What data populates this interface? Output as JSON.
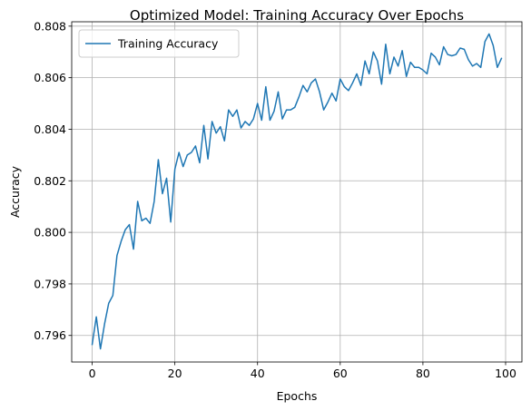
{
  "chart_data": {
    "type": "line",
    "title": "Optimized Model: Training Accuracy Over Epochs",
    "xlabel": "Epochs",
    "ylabel": "Accuracy",
    "xlim": [
      -4.95,
      103.95
    ],
    "ylim": [
      0.79497,
      0.80817
    ],
    "x_ticks": [
      0,
      20,
      40,
      60,
      80,
      100
    ],
    "y_ticks": [
      0.796,
      0.798,
      0.8,
      0.802,
      0.804,
      0.806,
      0.808
    ],
    "x_tick_labels": [
      "0",
      "20",
      "40",
      "60",
      "80",
      "100"
    ],
    "y_tick_labels": [
      "0.796",
      "0.798",
      "0.800",
      "0.802",
      "0.804",
      "0.806",
      "0.808"
    ],
    "grid": true,
    "legend_position": "top-left",
    "colors": {
      "series": "#1f77b4",
      "grid": "#b0b0b0"
    },
    "series": [
      {
        "name": "Training Accuracy",
        "x": [
          0,
          1,
          2,
          3,
          4,
          5,
          6,
          7,
          8,
          9,
          10,
          11,
          12,
          13,
          14,
          15,
          16,
          17,
          18,
          19,
          20,
          21,
          22,
          23,
          24,
          25,
          26,
          27,
          28,
          29,
          30,
          31,
          32,
          33,
          34,
          35,
          36,
          37,
          38,
          39,
          40,
          41,
          42,
          43,
          44,
          45,
          46,
          47,
          48,
          49,
          50,
          51,
          52,
          53,
          54,
          55,
          56,
          57,
          58,
          59,
          60,
          61,
          62,
          63,
          64,
          65,
          66,
          67,
          68,
          69,
          70,
          71,
          72,
          73,
          74,
          75,
          76,
          77,
          78,
          79,
          80,
          81,
          82,
          83,
          84,
          85,
          86,
          87,
          88,
          89,
          90,
          91,
          92,
          93,
          94,
          95,
          96,
          97,
          98,
          99
        ],
        "values": [
          0.79565,
          0.79672,
          0.79548,
          0.79645,
          0.79725,
          0.79755,
          0.7991,
          0.79965,
          0.8001,
          0.8003,
          0.79935,
          0.8012,
          0.80045,
          0.80055,
          0.80035,
          0.8012,
          0.80282,
          0.8015,
          0.8021,
          0.8004,
          0.80245,
          0.8031,
          0.80255,
          0.803,
          0.8031,
          0.80335,
          0.8027,
          0.80415,
          0.80285,
          0.8043,
          0.80385,
          0.8041,
          0.80355,
          0.80475,
          0.8045,
          0.80475,
          0.80405,
          0.8043,
          0.80415,
          0.8044,
          0.805,
          0.80435,
          0.80565,
          0.80435,
          0.8047,
          0.80545,
          0.8044,
          0.80475,
          0.80475,
          0.80485,
          0.80525,
          0.8057,
          0.80545,
          0.8058,
          0.80595,
          0.80545,
          0.80475,
          0.80505,
          0.8054,
          0.8051,
          0.80595,
          0.80565,
          0.8055,
          0.8058,
          0.80615,
          0.8057,
          0.80665,
          0.80615,
          0.807,
          0.80665,
          0.80575,
          0.8073,
          0.80615,
          0.8068,
          0.80645,
          0.80705,
          0.80605,
          0.8066,
          0.8064,
          0.8064,
          0.8063,
          0.80615,
          0.80695,
          0.8068,
          0.8065,
          0.8072,
          0.8069,
          0.80685,
          0.8069,
          0.80715,
          0.8071,
          0.8067,
          0.80645,
          0.80655,
          0.8064,
          0.8074,
          0.8077,
          0.80725,
          0.8064,
          0.80675
        ]
      }
    ]
  }
}
